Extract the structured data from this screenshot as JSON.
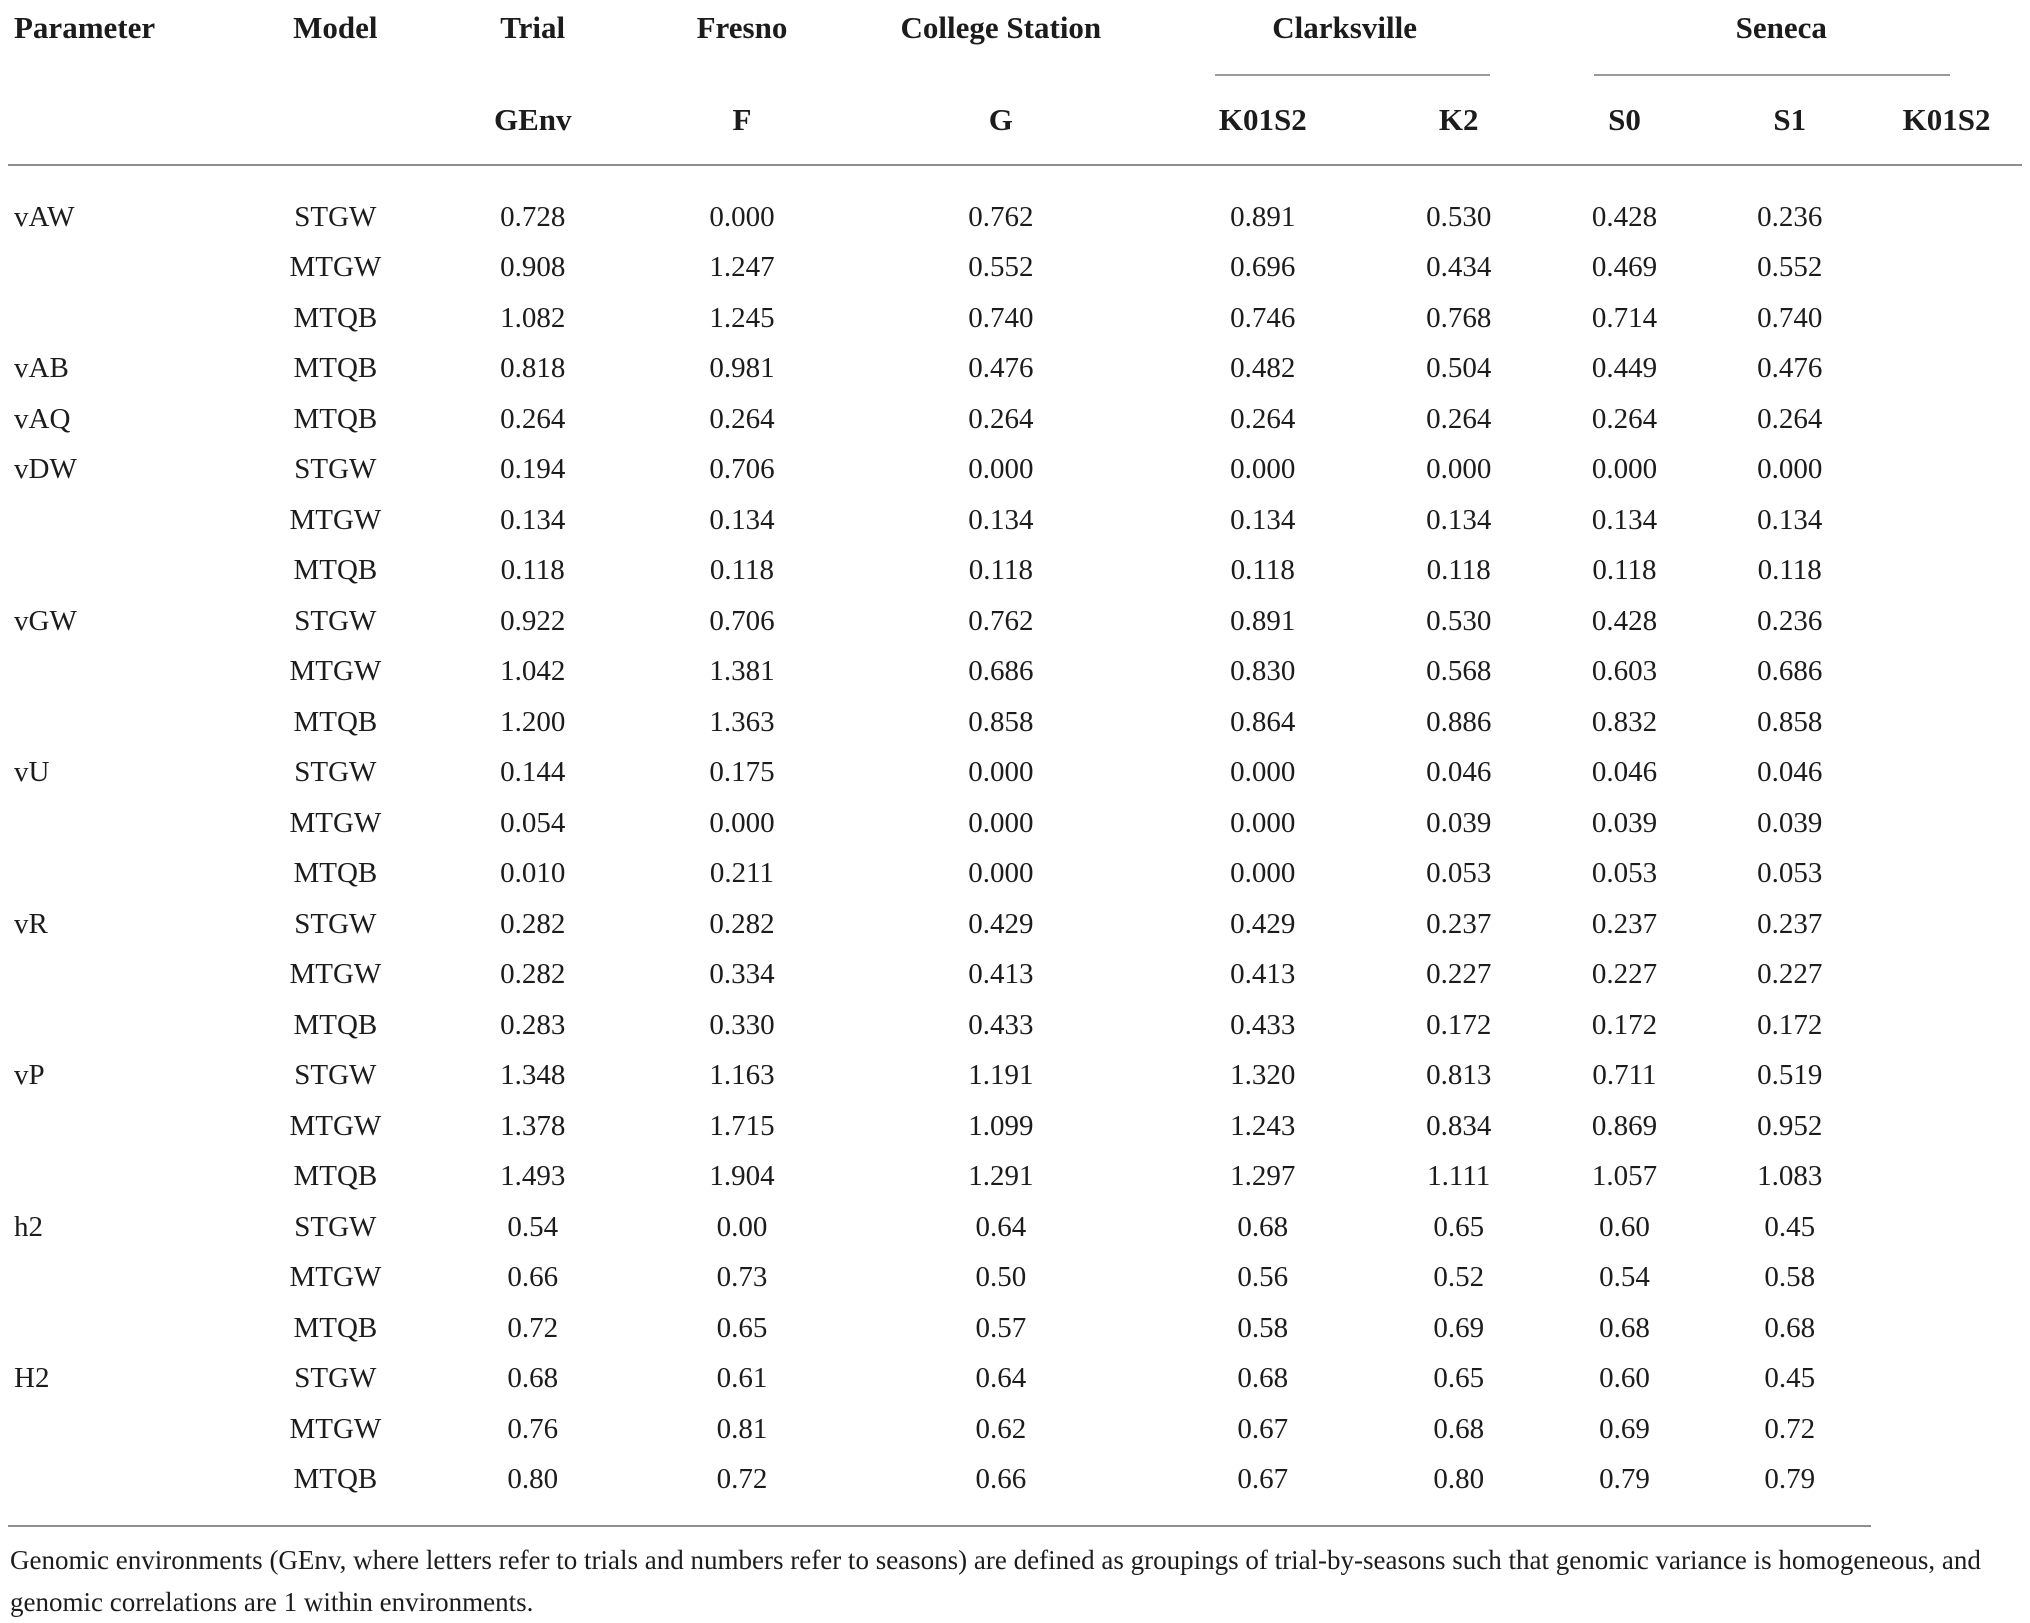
{
  "table": {
    "header": {
      "parameter": "Parameter",
      "model": "Model",
      "trial": "Trial",
      "fresno": "Fresno",
      "college_station": "College Station",
      "clarksville": "Clarksville",
      "seneca": "Seneca",
      "genv": "GEnv"
    },
    "subheader": [
      "F",
      "G",
      "K01S2",
      "K2",
      "S0",
      "S1",
      "K01S2"
    ],
    "rows": [
      {
        "parameter": "vAW",
        "model": "STGW",
        "values": [
          "0.728",
          "0.000",
          "0.762",
          "0.891",
          "0.530",
          "0.428",
          "0.236"
        ]
      },
      {
        "parameter": "",
        "model": "MTGW",
        "values": [
          "0.908",
          "1.247",
          "0.552",
          "0.696",
          "0.434",
          "0.469",
          "0.552"
        ]
      },
      {
        "parameter": "",
        "model": "MTQB",
        "values": [
          "1.082",
          "1.245",
          "0.740",
          "0.746",
          "0.768",
          "0.714",
          "0.740"
        ]
      },
      {
        "parameter": "vAB",
        "model": "MTQB",
        "values": [
          "0.818",
          "0.981",
          "0.476",
          "0.482",
          "0.504",
          "0.449",
          "0.476"
        ]
      },
      {
        "parameter": "vAQ",
        "model": "MTQB",
        "values": [
          "0.264",
          "0.264",
          "0.264",
          "0.264",
          "0.264",
          "0.264",
          "0.264"
        ]
      },
      {
        "parameter": "vDW",
        "model": "STGW",
        "values": [
          "0.194",
          "0.706",
          "0.000",
          "0.000",
          "0.000",
          "0.000",
          "0.000"
        ]
      },
      {
        "parameter": "",
        "model": "MTGW",
        "values": [
          "0.134",
          "0.134",
          "0.134",
          "0.134",
          "0.134",
          "0.134",
          "0.134"
        ]
      },
      {
        "parameter": "",
        "model": "MTQB",
        "values": [
          "0.118",
          "0.118",
          "0.118",
          "0.118",
          "0.118",
          "0.118",
          "0.118"
        ]
      },
      {
        "parameter": "vGW",
        "model": "STGW",
        "values": [
          "0.922",
          "0.706",
          "0.762",
          "0.891",
          "0.530",
          "0.428",
          "0.236"
        ]
      },
      {
        "parameter": "",
        "model": "MTGW",
        "values": [
          "1.042",
          "1.381",
          "0.686",
          "0.830",
          "0.568",
          "0.603",
          "0.686"
        ]
      },
      {
        "parameter": "",
        "model": "MTQB",
        "values": [
          "1.200",
          "1.363",
          "0.858",
          "0.864",
          "0.886",
          "0.832",
          "0.858"
        ]
      },
      {
        "parameter": "vU",
        "model": "STGW",
        "values": [
          "0.144",
          "0.175",
          "0.000",
          "0.000",
          "0.046",
          "0.046",
          "0.046"
        ]
      },
      {
        "parameter": "",
        "model": "MTGW",
        "values": [
          "0.054",
          "0.000",
          "0.000",
          "0.000",
          "0.039",
          "0.039",
          "0.039"
        ]
      },
      {
        "parameter": "",
        "model": "MTQB",
        "values": [
          "0.010",
          "0.211",
          "0.000",
          "0.000",
          "0.053",
          "0.053",
          "0.053"
        ]
      },
      {
        "parameter": "vR",
        "model": "STGW",
        "values": [
          "0.282",
          "0.282",
          "0.429",
          "0.429",
          "0.237",
          "0.237",
          "0.237"
        ]
      },
      {
        "parameter": "",
        "model": "MTGW",
        "values": [
          "0.282",
          "0.334",
          "0.413",
          "0.413",
          "0.227",
          "0.227",
          "0.227"
        ]
      },
      {
        "parameter": "",
        "model": "MTQB",
        "values": [
          "0.283",
          "0.330",
          "0.433",
          "0.433",
          "0.172",
          "0.172",
          "0.172"
        ]
      },
      {
        "parameter": "vP",
        "model": "STGW",
        "values": [
          "1.348",
          "1.163",
          "1.191",
          "1.320",
          "0.813",
          "0.711",
          "0.519"
        ]
      },
      {
        "parameter": "",
        "model": "MTGW",
        "values": [
          "1.378",
          "1.715",
          "1.099",
          "1.243",
          "0.834",
          "0.869",
          "0.952"
        ]
      },
      {
        "parameter": "",
        "model": "MTQB",
        "values": [
          "1.493",
          "1.904",
          "1.291",
          "1.297",
          "1.111",
          "1.057",
          "1.083"
        ]
      },
      {
        "parameter": "h2",
        "model": "STGW",
        "values": [
          "0.54",
          "0.00",
          "0.64",
          "0.68",
          "0.65",
          "0.60",
          "0.45"
        ]
      },
      {
        "parameter": "",
        "model": "MTGW",
        "values": [
          "0.66",
          "0.73",
          "0.50",
          "0.56",
          "0.52",
          "0.54",
          "0.58"
        ]
      },
      {
        "parameter": "",
        "model": "MTQB",
        "values": [
          "0.72",
          "0.65",
          "0.57",
          "0.58",
          "0.69",
          "0.68",
          "0.68"
        ]
      },
      {
        "parameter": "H2",
        "model": "STGW",
        "values": [
          "0.68",
          "0.61",
          "0.64",
          "0.68",
          "0.65",
          "0.60",
          "0.45"
        ]
      },
      {
        "parameter": "",
        "model": "MTGW",
        "values": [
          "0.76",
          "0.81",
          "0.62",
          "0.67",
          "0.68",
          "0.69",
          "0.72"
        ]
      },
      {
        "parameter": "",
        "model": "MTQB",
        "values": [
          "0.80",
          "0.72",
          "0.66",
          "0.67",
          "0.80",
          "0.79",
          "0.79"
        ]
      }
    ],
    "footnote": "Genomic environments (GEnv, where letters refer to trials and numbers refer to seasons) are defined as groupings of trial-by-seasons such that genomic variance is homogeneous, and genomic correlations are 1 within environments.",
    "colors": {
      "text": "#1c1c1c",
      "rule": "#8e8e8e"
    }
  }
}
